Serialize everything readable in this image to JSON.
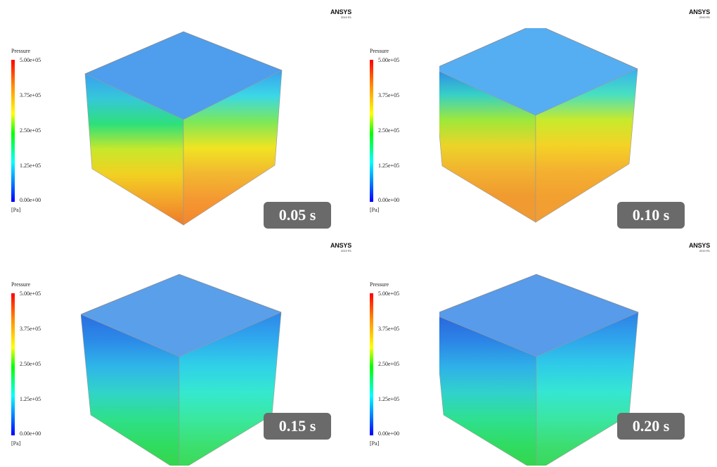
{
  "panels": [
    {
      "time_label": "0.05 s",
      "logo": {
        "brand": "ANSYS",
        "version": "2019 R1"
      },
      "legend": {
        "title": "Pressure",
        "ticks": [
          "5.00e+05",
          "3.75e+05",
          "2.50e+05",
          "1.25e+05",
          "0.00e+00"
        ],
        "unit": "[Pa]"
      },
      "colors": {
        "top": "#2f8dea",
        "front": [
          "#3aa0f0",
          "#35c8d8",
          "#2ee07a",
          "#c8e82a",
          "#f2d022",
          "#f3a52a",
          "#ee7a2a"
        ],
        "side": [
          "#3aa0f0",
          "#3bd8e6",
          "#7de858",
          "#f0e422",
          "#f2b830",
          "#f49832",
          "#f3862c"
        ]
      }
    },
    {
      "time_label": "0.10 s",
      "logo": {
        "brand": "ANSYS",
        "version": "2019 R1"
      },
      "legend": {
        "title": "Pressure",
        "ticks": [
          "5.00e+05",
          "3.75e+05",
          "2.50e+05",
          "1.25e+05",
          "0.00e+00"
        ],
        "unit": "[Pa]"
      },
      "colors": {
        "top": "#38a0f0",
        "front": [
          "#2f88e8",
          "#36d0c8",
          "#9ee83a",
          "#ecd428",
          "#f2b230",
          "#f09a30",
          "#ef9a34"
        ],
        "side": [
          "#38b0f0",
          "#48e0c0",
          "#c8ea2c",
          "#f4d226",
          "#f4b030",
          "#f2a030",
          "#f29c34"
        ]
      }
    },
    {
      "time_label": "0.15 s",
      "logo": {
        "brand": "ANSYS",
        "version": "2019 R1"
      },
      "legend": {
        "title": "Pressure",
        "ticks": [
          "5.00e+05",
          "3.75e+05",
          "2.50e+05",
          "1.25e+05",
          "0.00e+00"
        ],
        "unit": "[Pa]"
      },
      "colors": {
        "top": "#3d8ee6",
        "front": [
          "#2a6fe0",
          "#2c8ae8",
          "#2fb6e8",
          "#31d4c8",
          "#2ee08a",
          "#30dc60",
          "#36d448"
        ],
        "side": [
          "#2f86e8",
          "#2fa8ee",
          "#2fd0e8",
          "#35e8d0",
          "#3ae8a0",
          "#3ce070",
          "#3ad852"
        ]
      }
    },
    {
      "time_label": "0.20 s",
      "logo": {
        "brand": "ANSYS",
        "version": "2019 R1"
      },
      "legend": {
        "title": "Pressure",
        "ticks": [
          "5.00e+05",
          "3.75e+05",
          "2.50e+05",
          "1.25e+05",
          "0.00e+00"
        ],
        "unit": "[Pa]"
      },
      "colors": {
        "top": "#3a8ae6",
        "front": [
          "#2a66dc",
          "#2c84e6",
          "#2fb0e8",
          "#31d2cc",
          "#2ee090",
          "#30dc62",
          "#36d44a"
        ],
        "side": [
          "#2f80e6",
          "#2fa4ec",
          "#2fcce8",
          "#35e6d2",
          "#3ae6a4",
          "#3cde72",
          "#3ad654"
        ]
      }
    }
  ]
}
